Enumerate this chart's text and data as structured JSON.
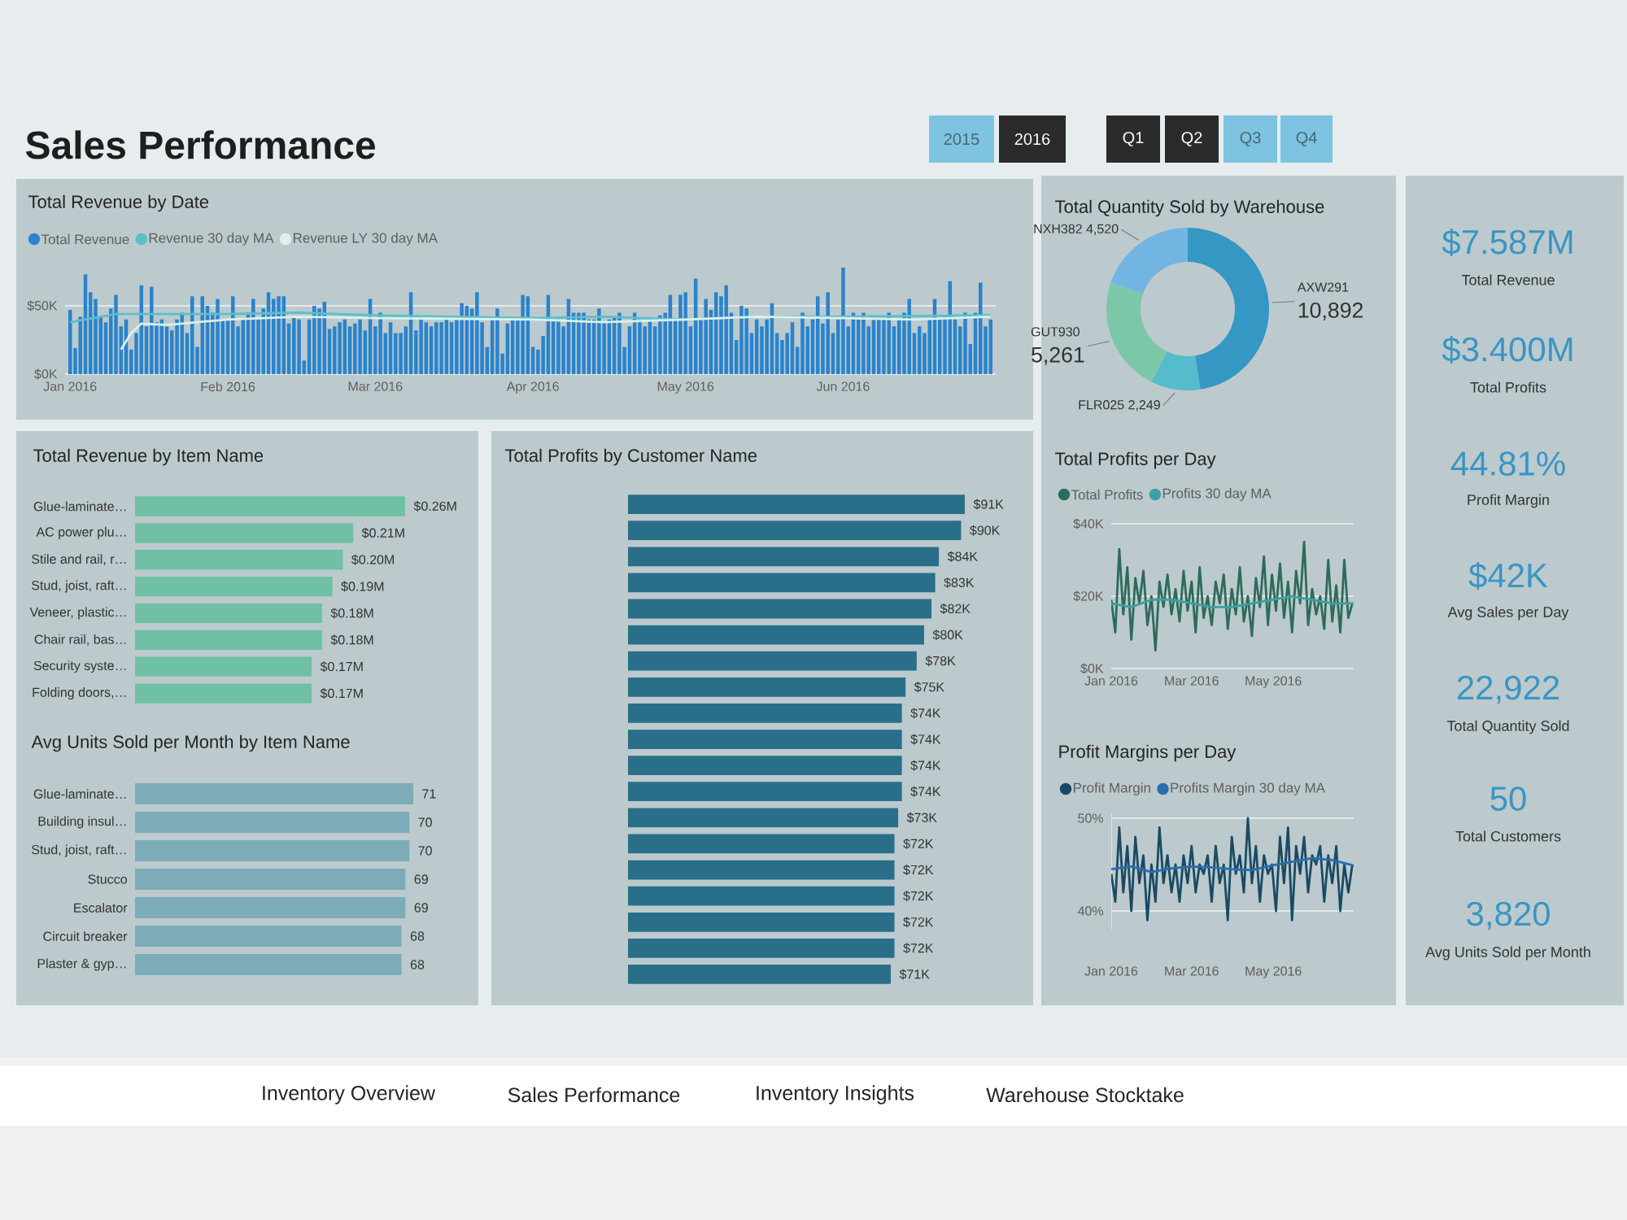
{
  "chart_data": [
    {
      "type": "other",
      "title": "Sales Performance",
      "annotations": [
        "2015",
        "2016",
        "Q1",
        "Q2",
        "Q3",
        "Q4"
      ],
      "colors": [
        "#7ec3df",
        "#2b2b2b",
        "#2b2b2b",
        "#2b2b2b",
        "#7ec3df",
        "#7ec3df"
      ]
    },
    {
      "type": "bar",
      "title": "Total Revenue by Date",
      "grid": "y",
      "legend": "top left",
      "x": [
        "2016-01-01",
        "2016-01-02",
        "2016-01-03",
        "2016-01-04",
        "2016-01-05",
        "2016-01-06",
        "2016-01-07",
        "2016-01-08",
        "2016-01-09",
        "2016-01-10",
        "2016-01-11",
        "2016-01-12",
        "2016-01-13",
        "2016-01-14",
        "2016-01-15",
        "2016-01-16",
        "2016-01-17",
        "2016-01-18",
        "2016-01-19",
        "2016-01-20",
        "2016-01-21",
        "2016-01-22",
        "2016-01-23",
        "2016-01-24",
        "2016-01-25",
        "2016-01-26",
        "2016-01-27",
        "2016-01-28",
        "2016-01-29",
        "2016-01-30",
        "2016-01-31",
        "2016-02-01",
        "2016-02-02",
        "2016-02-03",
        "2016-02-04",
        "2016-02-05",
        "2016-02-06",
        "2016-02-07",
        "2016-02-08",
        "2016-02-09",
        "2016-02-10",
        "2016-02-11",
        "2016-02-12",
        "2016-02-13",
        "2016-02-14",
        "2016-02-15",
        "2016-02-16",
        "2016-02-17",
        "2016-02-18",
        "2016-02-19",
        "2016-02-20",
        "2016-02-21",
        "2016-02-22",
        "2016-02-23",
        "2016-02-24",
        "2016-02-25",
        "2016-02-26",
        "2016-02-27",
        "2016-02-28",
        "2016-02-29",
        "2016-03-01",
        "2016-03-02",
        "2016-03-03",
        "2016-03-04",
        "2016-03-05",
        "2016-03-06",
        "2016-03-07",
        "2016-03-08",
        "2016-03-09",
        "2016-03-10",
        "2016-03-11",
        "2016-03-12",
        "2016-03-13",
        "2016-03-14",
        "2016-03-15",
        "2016-03-16",
        "2016-03-17",
        "2016-03-18",
        "2016-03-19",
        "2016-03-20",
        "2016-03-21",
        "2016-03-22",
        "2016-03-23",
        "2016-03-24",
        "2016-03-25",
        "2016-03-26",
        "2016-03-27",
        "2016-03-28",
        "2016-03-29",
        "2016-03-30",
        "2016-03-31",
        "2016-04-01",
        "2016-04-02",
        "2016-04-03",
        "2016-04-04",
        "2016-04-05",
        "2016-04-06",
        "2016-04-07",
        "2016-04-08",
        "2016-04-09",
        "2016-04-10",
        "2016-04-11",
        "2016-04-12",
        "2016-04-13",
        "2016-04-14",
        "2016-04-15",
        "2016-04-16",
        "2016-04-17",
        "2016-04-18",
        "2016-04-19",
        "2016-04-20",
        "2016-04-21",
        "2016-04-22",
        "2016-04-23",
        "2016-04-24",
        "2016-04-25",
        "2016-04-26",
        "2016-04-27",
        "2016-04-28",
        "2016-04-29",
        "2016-04-30",
        "2016-05-01",
        "2016-05-02",
        "2016-05-03",
        "2016-05-04",
        "2016-05-05",
        "2016-05-06",
        "2016-05-07",
        "2016-05-08",
        "2016-05-09",
        "2016-05-10",
        "2016-05-11",
        "2016-05-12",
        "2016-05-13",
        "2016-05-14",
        "2016-05-15",
        "2016-05-16",
        "2016-05-17",
        "2016-05-18",
        "2016-05-19",
        "2016-05-20",
        "2016-05-21",
        "2016-05-22",
        "2016-05-23",
        "2016-05-24",
        "2016-05-25",
        "2016-05-26",
        "2016-05-27",
        "2016-05-28",
        "2016-05-29",
        "2016-05-30",
        "2016-05-31",
        "2016-06-01",
        "2016-06-02",
        "2016-06-03",
        "2016-06-04",
        "2016-06-05",
        "2016-06-06",
        "2016-06-07",
        "2016-06-08",
        "2016-06-09",
        "2016-06-10",
        "2016-06-11",
        "2016-06-12",
        "2016-06-13",
        "2016-06-14",
        "2016-06-15",
        "2016-06-16",
        "2016-06-17",
        "2016-06-18",
        "2016-06-19",
        "2016-06-20",
        "2016-06-21",
        "2016-06-22",
        "2016-06-23",
        "2016-06-24",
        "2016-06-25",
        "2016-06-26",
        "2016-06-27",
        "2016-06-28",
        "2016-06-29",
        "2016-06-30"
      ],
      "series": [
        {
          "name": "Total Revenue",
          "color": "#2a83cc",
          "values": [
            47,
            19,
            42,
            73,
            60,
            55,
            42,
            38,
            48,
            58,
            35,
            40,
            18,
            30,
            65,
            35,
            64,
            38,
            40,
            35,
            32,
            40,
            45,
            30,
            57,
            20,
            57,
            50,
            45,
            55,
            40,
            40,
            57,
            35,
            40,
            45,
            55,
            40,
            48,
            60,
            55,
            57,
            57,
            37,
            42,
            40,
            10,
            40,
            50,
            48,
            53,
            33,
            35,
            38,
            40,
            35,
            37,
            40,
            32,
            55,
            35,
            45,
            30,
            38,
            30,
            30,
            35,
            60,
            32,
            40,
            38,
            35,
            38,
            38,
            42,
            38,
            40,
            52,
            50,
            48,
            60,
            38,
            20,
            40,
            48,
            15,
            37,
            40,
            40,
            58,
            57,
            20,
            18,
            28,
            58,
            40,
            40,
            35,
            55,
            45,
            45,
            45,
            40,
            40,
            48,
            38,
            40,
            42,
            45,
            20,
            35,
            45,
            40,
            35,
            40,
            35,
            43,
            45,
            58,
            40,
            58,
            60,
            35,
            70,
            40,
            55,
            47,
            60,
            57,
            65,
            45,
            25,
            50,
            48,
            30,
            40,
            35,
            40,
            52,
            30,
            25,
            30,
            38,
            20,
            45,
            35,
            40,
            57,
            37,
            60,
            30,
            40,
            78,
            35,
            45,
            40,
            45,
            35,
            40,
            40,
            40,
            45,
            35,
            40,
            45,
            55,
            30,
            35,
            30,
            40,
            55,
            40,
            42,
            68,
            40,
            35,
            45,
            22,
            45,
            67,
            35,
            40
          ]
        },
        {
          "name": "Revenue 30 day MA",
          "type": "line",
          "color": "#5bbfc9",
          "x": [
            "2016-01-01",
            "2016-01-10",
            "2016-02-01",
            "2016-02-15",
            "2016-03-01",
            "2016-04-01",
            "2016-04-15",
            "2016-05-01",
            "2016-05-15",
            "2016-06-01",
            "2016-06-30"
          ],
          "values": [
            38,
            44,
            44,
            45,
            43,
            41,
            42,
            40,
            42,
            42,
            43
          ]
        },
        {
          "name": "Revenue LY 30 day MA",
          "type": "line",
          "color": "#d9f2ea",
          "x": [
            "2016-01-11",
            "2016-01-13",
            "2016-01-15",
            "2016-01-20",
            "2016-02-01",
            "2016-02-15",
            "2016-03-01",
            "2016-04-01",
            "2016-04-15",
            "2016-05-01",
            "2016-05-15",
            "2016-06-01",
            "2016-06-15",
            "2016-06-30"
          ],
          "values": [
            18,
            30,
            37,
            36,
            40,
            42,
            41,
            40,
            38,
            40,
            42,
            41,
            40,
            42
          ]
        }
      ],
      "xlim": [
        "2015-12-31",
        "2016-07-01"
      ],
      "xticks": [
        {
          "value": "2016-01-01",
          "label": "Jan 2016"
        },
        {
          "value": "2016-02-01",
          "label": "Feb 2016"
        },
        {
          "value": "2016-03-01",
          "label": "Mar 2016"
        },
        {
          "value": "2016-04-01",
          "label": "Apr 2016"
        },
        {
          "value": "2016-05-01",
          "label": "May 2016"
        },
        {
          "value": "2016-06-01",
          "label": "Jun 2016"
        }
      ],
      "ylim": [
        0,
        80
      ],
      "yticks": [
        {
          "value": 0,
          "label": "$0K"
        },
        {
          "value": 50,
          "label": "$50K"
        }
      ]
    },
    {
      "type": "bar",
      "orientation": "horizontal",
      "title": "Total Revenue by Item Name",
      "categories": [
        "Glue-laminate…",
        "AC power plu…",
        "Stile and rail, r…",
        "Stud, joist, raft…",
        "Veneer, plastic…",
        "Chair rail, bas…",
        "Security syste…",
        "Folding doors,…"
      ],
      "values": [
        0.26,
        0.21,
        0.2,
        0.19,
        0.18,
        0.18,
        0.17,
        0.17
      ],
      "value_labels": [
        "$0.26M",
        "$0.21M",
        "$0.20M",
        "$0.19M",
        "$0.18M",
        "$0.18M",
        "$0.17M",
        "$0.17M"
      ],
      "color": "#6fc0a4",
      "xlim": [
        0,
        0.26
      ],
      "tick_labels": "y"
    },
    {
      "type": "bar",
      "orientation": "horizontal",
      "title": "Avg Units Sold per Month by Item Name",
      "categories": [
        "Glue-laminate…",
        "Building insul…",
        "Stud, joist, raft…",
        "Stucco",
        "Escalator",
        "Circuit breaker",
        "Plaster & gyp…"
      ],
      "values": [
        71,
        70,
        70,
        69,
        69,
        68,
        68
      ],
      "data_labels": true,
      "color": "#7eabb8",
      "xlim": [
        0,
        71
      ],
      "tick_labels": "y"
    },
    {
      "type": "bar",
      "orientation": "horizontal",
      "title": "Total Profits by Customer Name",
      "categories": [
        null,
        null,
        null,
        null,
        null,
        null,
        null,
        null,
        null,
        null,
        null,
        null,
        null,
        null,
        null,
        null,
        null,
        null,
        null
      ],
      "values": [
        91,
        90,
        84,
        83,
        82,
        80,
        78,
        75,
        74,
        74,
        74,
        74,
        73,
        72,
        72,
        72,
        72,
        72,
        71
      ],
      "value_labels": [
        "$91K",
        "$90K",
        "$84K",
        "$83K",
        "$82K",
        "$80K",
        "$78K",
        "$75K",
        "$74K",
        "$74K",
        "$74K",
        "$74K",
        "$73K",
        "$72K",
        "$72K",
        "$72K",
        "$72K",
        "$72K",
        "$71K"
      ],
      "color": "#2a6f8a",
      "xlim": [
        0,
        91
      ],
      "tick_labels": "y"
    },
    {
      "type": "donut",
      "title": "Total Quantity Sold by Warehouse",
      "categories": [
        "AXW291",
        "FLR025",
        "GUT930",
        "NXH382"
      ],
      "values": [
        10892,
        2249,
        5261,
        4520
      ],
      "value_labels": [
        "10,892",
        "2,249",
        "5,261",
        "4,520"
      ],
      "colors": [
        "#3597c4",
        "#55bccb",
        "#7cc7a8",
        "#73b5e2"
      ]
    },
    {
      "type": "line",
      "title": "Total Profits per Day",
      "grid": "y",
      "legend": "top left",
      "x": [
        "2016-01-01",
        "2016-01-04",
        "2016-01-07",
        "2016-01-10",
        "2016-01-13",
        "2016-01-16",
        "2016-01-19",
        "2016-01-22",
        "2016-01-25",
        "2016-01-28",
        "2016-01-31",
        "2016-02-03",
        "2016-02-06",
        "2016-02-09",
        "2016-02-12",
        "2016-02-15",
        "2016-02-18",
        "2016-02-21",
        "2016-02-24",
        "2016-02-27",
        "2016-03-01",
        "2016-03-04",
        "2016-03-07",
        "2016-03-10",
        "2016-03-13",
        "2016-03-16",
        "2016-03-19",
        "2016-03-22",
        "2016-03-25",
        "2016-03-28",
        "2016-03-31",
        "2016-04-03",
        "2016-04-06",
        "2016-04-09",
        "2016-04-12",
        "2016-04-15",
        "2016-04-18",
        "2016-04-21",
        "2016-04-24",
        "2016-04-27",
        "2016-04-30",
        "2016-05-03",
        "2016-05-06",
        "2016-05-09",
        "2016-05-12",
        "2016-05-15",
        "2016-05-18",
        "2016-05-21",
        "2016-05-24",
        "2016-05-27",
        "2016-05-30",
        "2016-06-02",
        "2016-06-05",
        "2016-06-08",
        "2016-06-11",
        "2016-06-14",
        "2016-06-17",
        "2016-06-20",
        "2016-06-23",
        "2016-06-26",
        "2016-06-29"
      ],
      "series": [
        {
          "name": "Total Profits",
          "color": "#2d6b5a",
          "values": [
            19,
            10,
            33,
            15,
            28,
            8,
            25,
            18,
            27,
            12,
            20,
            5,
            24,
            17,
            26,
            15,
            22,
            13,
            27,
            16,
            24,
            10,
            28,
            14,
            20,
            12,
            24,
            18,
            26,
            11,
            22,
            15,
            28,
            13,
            20,
            9,
            25,
            17,
            31,
            12,
            26,
            16,
            29,
            14,
            24,
            10,
            27,
            18,
            35,
            12,
            22,
            15,
            20,
            11,
            30,
            13,
            23,
            10,
            30,
            14,
            18
          ]
        },
        {
          "name": "Profits 30 day MA",
          "color": "#3aa0a8",
          "x": [
            "2016-01-01",
            "2016-01-16",
            "2016-01-31",
            "2016-02-15",
            "2016-03-01",
            "2016-03-16",
            "2016-03-31",
            "2016-04-15",
            "2016-04-30",
            "2016-05-15",
            "2016-05-30",
            "2016-06-14",
            "2016-06-30"
          ],
          "values": [
            18,
            17,
            19,
            19,
            18,
            17,
            17,
            18,
            19,
            20,
            19,
            18,
            18
          ]
        }
      ],
      "xlim": [
        "2016-01-01",
        "2016-06-30"
      ],
      "xticks": [
        {
          "value": "2016-01-01",
          "label": "Jan 2016"
        },
        {
          "value": "2016-03-01",
          "label": "Mar 2016"
        },
        {
          "value": "2016-05-01",
          "label": "May 2016"
        }
      ],
      "ylim": [
        0,
        40
      ],
      "yticks": [
        {
          "value": 0,
          "label": "$0K"
        },
        {
          "value": 20,
          "label": "$20K"
        },
        {
          "value": 40,
          "label": "$40K"
        }
      ]
    },
    {
      "type": "line",
      "title": "Profit Margins per Day",
      "grid": "y",
      "legend": "top left",
      "x": [
        "2016-01-01",
        "2016-01-04",
        "2016-01-07",
        "2016-01-10",
        "2016-01-13",
        "2016-01-16",
        "2016-01-19",
        "2016-01-22",
        "2016-01-25",
        "2016-01-28",
        "2016-01-31",
        "2016-02-03",
        "2016-02-06",
        "2016-02-09",
        "2016-02-12",
        "2016-02-15",
        "2016-02-18",
        "2016-02-21",
        "2016-02-24",
        "2016-02-27",
        "2016-03-01",
        "2016-03-04",
        "2016-03-07",
        "2016-03-10",
        "2016-03-13",
        "2016-03-16",
        "2016-03-19",
        "2016-03-22",
        "2016-03-25",
        "2016-03-28",
        "2016-03-31",
        "2016-04-03",
        "2016-04-06",
        "2016-04-09",
        "2016-04-12",
        "2016-04-15",
        "2016-04-18",
        "2016-04-21",
        "2016-04-24",
        "2016-04-27",
        "2016-04-30",
        "2016-05-03",
        "2016-05-06",
        "2016-05-09",
        "2016-05-12",
        "2016-05-15",
        "2016-05-18",
        "2016-05-21",
        "2016-05-24",
        "2016-05-27",
        "2016-05-30",
        "2016-06-02",
        "2016-06-05",
        "2016-06-08",
        "2016-06-11",
        "2016-06-14",
        "2016-06-17",
        "2016-06-20",
        "2016-06-23",
        "2016-06-26",
        "2016-06-29"
      ],
      "series": [
        {
          "name": "Profit Margin",
          "color": "#1a4a63",
          "values": [
            44,
            41,
            49,
            42,
            47,
            40,
            48,
            43,
            46,
            39,
            45,
            41,
            49,
            43,
            46,
            42,
            45,
            41,
            46,
            43,
            47,
            42,
            45,
            44,
            46,
            41,
            47,
            43,
            45,
            39,
            48,
            44,
            46,
            42,
            50,
            43,
            47,
            41,
            46,
            44,
            45,
            40,
            48,
            43,
            49,
            39,
            47,
            44,
            48,
            42,
            46,
            45,
            47,
            41,
            46,
            43,
            47,
            40,
            45,
            42,
            45
          ]
        },
        {
          "name": "Profits Margin 30 day MA",
          "color": "#2a6db0",
          "x": [
            "2016-01-01",
            "2016-01-16",
            "2016-01-31",
            "2016-02-15",
            "2016-03-01",
            "2016-03-16",
            "2016-03-31",
            "2016-04-15",
            "2016-04-30",
            "2016-05-15",
            "2016-05-30",
            "2016-06-14",
            "2016-06-30"
          ],
          "values": [
            44.5,
            44.8,
            44.2,
            44.6,
            44.8,
            44.7,
            44.5,
            44.4,
            44.9,
            45.3,
            45.7,
            45.5,
            44.9
          ]
        }
      ],
      "xlim": [
        "2016-01-01",
        "2016-06-30"
      ],
      "xticks": [
        {
          "value": "2016-01-01",
          "label": "Jan 2016"
        },
        {
          "value": "2016-03-01",
          "label": "Mar 2016"
        },
        {
          "value": "2016-05-01",
          "label": "May 2016"
        }
      ],
      "ylim": [
        38,
        50.5
      ],
      "yticks": [
        {
          "value": 40,
          "label": "40%"
        },
        {
          "value": 50,
          "label": "50%"
        }
      ]
    },
    {
      "type": "other",
      "annotations": [
        "$7.587M",
        "Total Revenue",
        "$3.400M",
        "Total Profits",
        "44.81%",
        "Profit Margin",
        "$42K",
        "Avg Sales per Day",
        "22,922",
        "Total Quantity Sold",
        "50",
        "Total Customers",
        "3,820",
        "Avg Units Sold per Month"
      ]
    },
    {
      "type": "other",
      "annotations": [
        "Inventory Overview",
        "Sales Performance",
        "Inventory Insights",
        "Warehouse Stocktake"
      ]
    }
  ]
}
